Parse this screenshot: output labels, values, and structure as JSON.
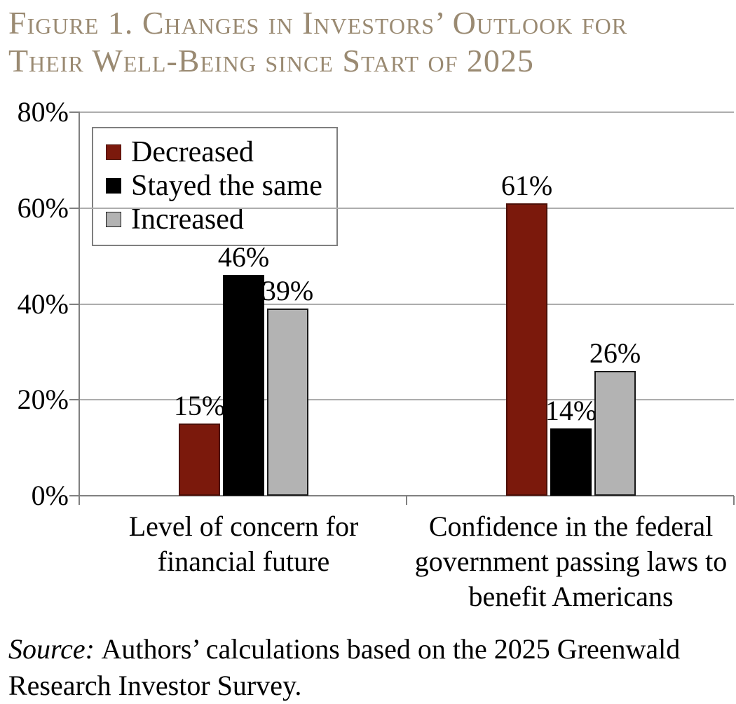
{
  "figure": {
    "title": "Figure 1. Changes in Investors’ Outlook for\nTheir Well-Being since Start of 2025",
    "title_color": "#9a8a72",
    "source": {
      "prefix": "Source:",
      "text": "Authors’ calculations based on the 2025 Greenwald Research Investor Survey."
    }
  },
  "chart_data": {
    "type": "bar",
    "title": "Changes in Investors’ Outlook for Their Well-Being since Start of 2025",
    "categories": [
      "Level of concern for\nfinancial future",
      "Confidence in the federal\ngovernment passing laws to\nbenefit Americans"
    ],
    "series": [
      {
        "name": "Decreased",
        "color": "#7b190c",
        "border_color": "#4c0f07",
        "values": [
          15,
          61
        ]
      },
      {
        "name": "Stayed the same",
        "color": "#000000",
        "border_color": "#000000",
        "values": [
          46,
          14
        ]
      },
      {
        "name": "Increased",
        "color": "#b3b3b3",
        "border_color": "#1a1a1a",
        "values": [
          39,
          26
        ]
      }
    ],
    "value_labels": [
      [
        "15%",
        "46%",
        "39%"
      ],
      [
        "61%",
        "14%",
        "26%"
      ]
    ],
    "xlabel": "",
    "ylabel": "",
    "ylim": [
      0,
      80
    ],
    "ytick_values": [
      0,
      20,
      40,
      60,
      80
    ],
    "ytick_labels": [
      "0%",
      "20%",
      "40%",
      "60%",
      "80%"
    ],
    "grid": true,
    "legend_position": "top-left",
    "legend_labels": [
      "Decreased",
      "Stayed the same",
      "Increased"
    ]
  },
  "colors": {
    "axis": "#808080",
    "gridline": "#adadad",
    "text": "#000000",
    "background": "#ffffff"
  }
}
